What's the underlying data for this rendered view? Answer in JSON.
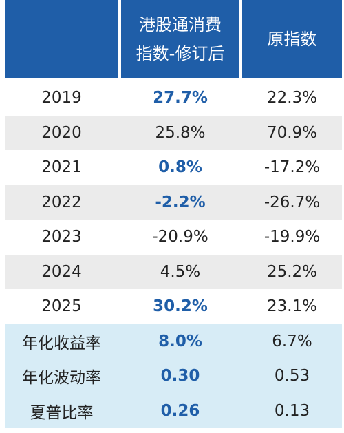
{
  "header": {
    "col0": "",
    "col1_line1": "港股通消费",
    "col1_line2": "指数-修订后",
    "col2": "原指数"
  },
  "rows": [
    {
      "label": "2019",
      "revised": "27.7%",
      "original": "22.3%",
      "revised_emphasis": true
    },
    {
      "label": "2020",
      "revised": "25.8%",
      "original": "70.9%",
      "revised_emphasis": false
    },
    {
      "label": "2021",
      "revised": "0.8%",
      "original": "-17.2%",
      "revised_emphasis": true
    },
    {
      "label": "2022",
      "revised": "-2.2%",
      "original": "-26.7%",
      "revised_emphasis": true
    },
    {
      "label": "2023",
      "revised": "-20.9%",
      "original": "-19.9%",
      "revised_emphasis": false
    },
    {
      "label": "2024",
      "revised": "4.5%",
      "original": "25.2%",
      "revised_emphasis": false
    },
    {
      "label": "2025",
      "revised": "30.2%",
      "original": "23.1%",
      "revised_emphasis": true
    },
    {
      "label": "年化收益率",
      "revised": "8.0%",
      "original": "6.7%",
      "revised_emphasis": true
    },
    {
      "label": "年化波动率",
      "revised": "0.30",
      "original": "0.53",
      "revised_emphasis": true
    },
    {
      "label": "夏普比率",
      "revised": "0.26",
      "original": "0.13",
      "revised_emphasis": true
    }
  ],
  "colors": {
    "header_bg": "#1f5ea8",
    "emphasis_text": "#1f5ea8",
    "stripe_gray": "#ebebeb",
    "stats_bg": "#d7ecf6"
  }
}
